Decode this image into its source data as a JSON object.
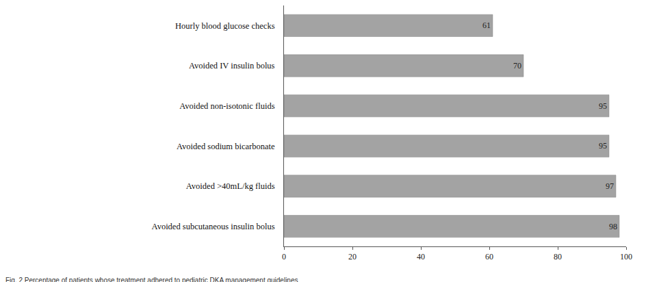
{
  "chart_data": {
    "type": "bar",
    "orientation": "horizontal",
    "title": "Fig. 2 Percentage of patients whose treatment adhered to pediatric DKA management guidelines",
    "categories": [
      "Hourly blood glucose checks",
      "Avoided IV insulin bolus",
      "Avoided non-isotonic fluids",
      "Avoided sodium bicarbonate",
      "Avoided >40mL/kg fluids",
      "Avoided subcutaneous insulin bolus"
    ],
    "values": [
      61,
      70,
      95,
      95,
      97,
      98
    ],
    "color": "#a3a3a3",
    "xlim": [
      0,
      100
    ],
    "xticks": [
      0,
      20,
      40,
      60,
      80,
      100
    ],
    "grid": false,
    "data_labels": true
  }
}
